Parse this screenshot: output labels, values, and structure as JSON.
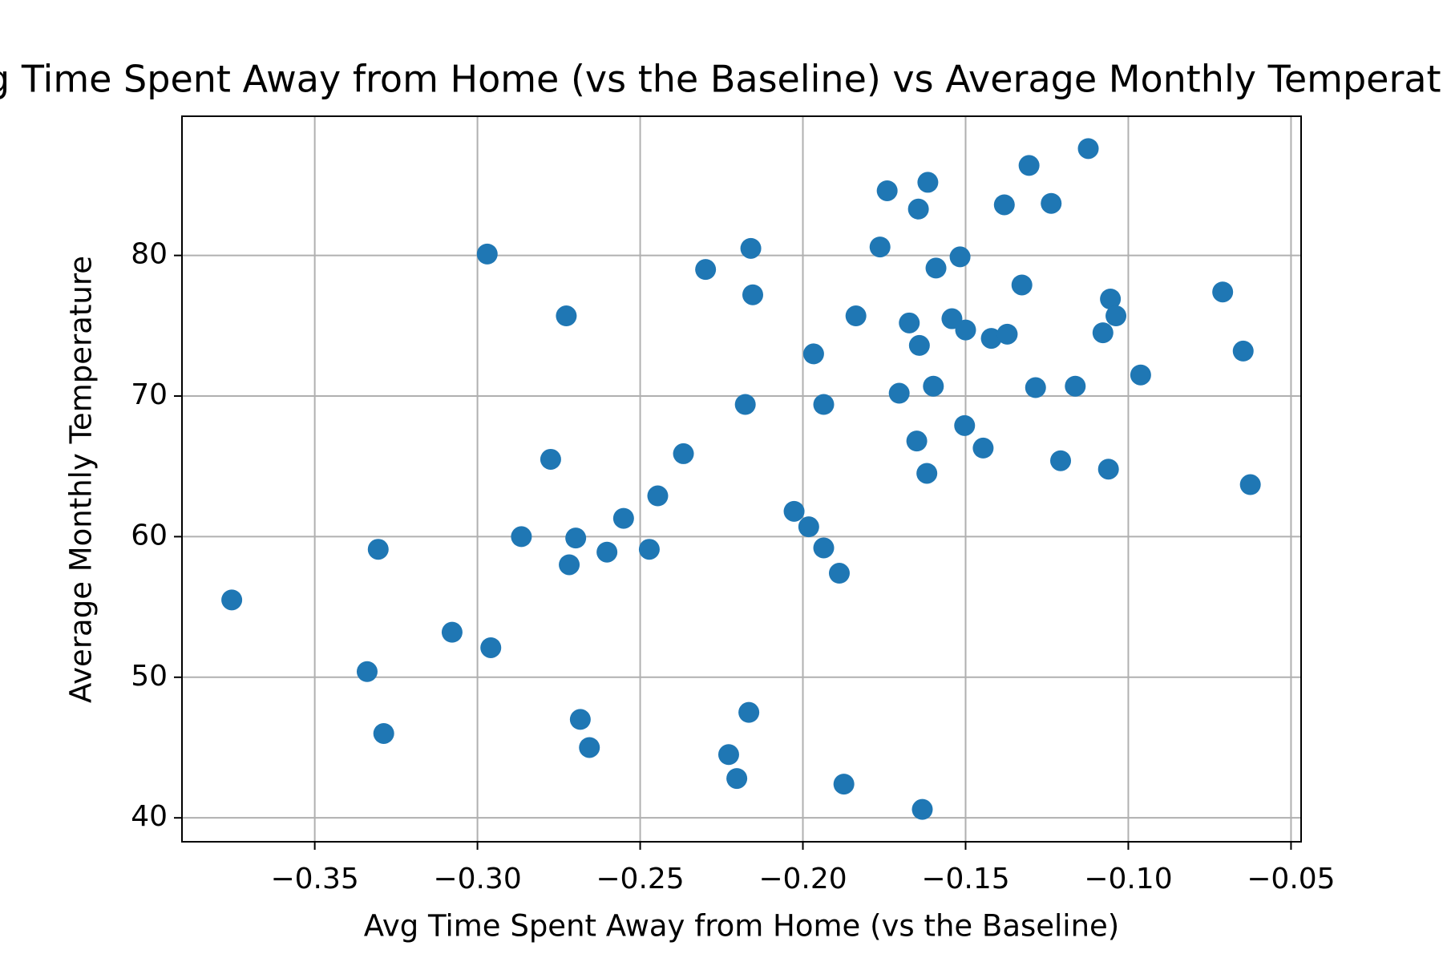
{
  "chart_data": {
    "type": "scatter",
    "title": "Avg Time Spent Away from Home (vs the Baseline) vs Average Monthly Temperature",
    "x_label": "Avg Time Spent Away from Home (vs the Baseline)",
    "y_label": "Average Monthly Temperature",
    "color": "#1f77b4",
    "grid": true,
    "xlim": [
      -0.3908,
      -0.0469
    ],
    "ylim": [
      38.3,
      89.9
    ],
    "xticks": [
      {
        "value": -0.35,
        "label": "−0.35"
      },
      {
        "value": -0.3,
        "label": "−0.30"
      },
      {
        "value": -0.25,
        "label": "−0.25"
      },
      {
        "value": -0.2,
        "label": "−0.20"
      },
      {
        "value": -0.15,
        "label": "−0.15"
      },
      {
        "value": -0.1,
        "label": "−0.10"
      },
      {
        "value": -0.05,
        "label": "−0.05"
      }
    ],
    "yticks": [
      40,
      50,
      60,
      70,
      80
    ],
    "x": [
      -0.3755,
      -0.3339,
      -0.3305,
      -0.3288,
      -0.3078,
      -0.297,
      -0.2959,
      -0.2865,
      -0.2775,
      -0.2727,
      -0.2718,
      -0.2698,
      -0.2684,
      -0.2656,
      -0.2602,
      -0.2551,
      -0.2472,
      -0.2446,
      -0.2367,
      -0.2299,
      -0.2228,
      -0.2203,
      -0.2177,
      -0.2166,
      -0.216,
      -0.2154,
      -0.2027,
      -0.1982,
      -0.1967,
      -0.1936,
      -0.1936,
      -0.1888,
      -0.1874,
      -0.1837,
      -0.1763,
      -0.1741,
      -0.1704,
      -0.1673,
      -0.165,
      -0.1645,
      -0.1642,
      -0.1633,
      -0.1619,
      -0.1616,
      -0.1599,
      -0.1591,
      -0.1542,
      -0.1517,
      -0.1503,
      -0.15,
      -0.1446,
      -0.1421,
      -0.1381,
      -0.1372,
      -0.1327,
      -0.1305,
      -0.1285,
      -0.1237,
      -0.1208,
      -0.1163,
      -0.1123,
      -0.1078,
      -0.1061,
      -0.1055,
      -0.1038,
      -0.0962,
      -0.071,
      -0.0647,
      -0.0625
    ],
    "values": [
      55.5,
      50.4,
      59.1,
      46.0,
      53.2,
      80.1,
      52.1,
      60.0,
      65.5,
      75.7,
      58.0,
      59.9,
      47.0,
      45.0,
      58.9,
      61.3,
      59.1,
      62.9,
      65.9,
      79.0,
      44.5,
      42.8,
      69.4,
      47.5,
      80.5,
      77.2,
      61.8,
      60.7,
      73.0,
      69.4,
      59.2,
      57.4,
      42.4,
      75.7,
      80.6,
      84.6,
      70.2,
      75.2,
      66.8,
      83.3,
      73.6,
      40.6,
      64.5,
      85.2,
      70.7,
      79.1,
      75.5,
      79.9,
      67.9,
      74.7,
      66.3,
      74.1,
      83.6,
      74.4,
      77.9,
      86.4,
      70.6,
      83.7,
      65.4,
      70.7,
      87.6,
      74.5,
      64.8,
      76.9,
      75.7,
      71.5,
      77.4,
      73.2,
      63.7
    ]
  }
}
